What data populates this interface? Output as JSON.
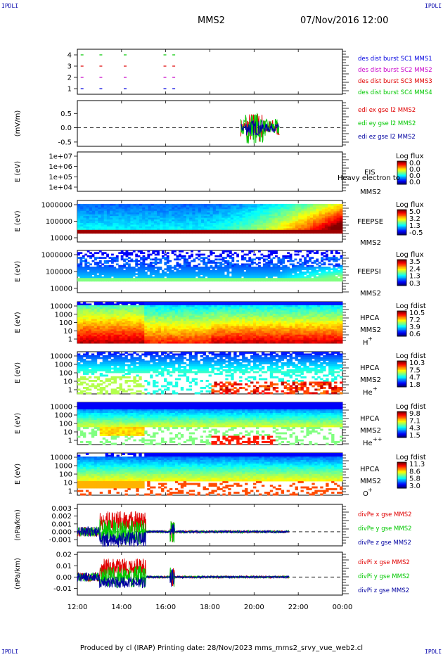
{
  "header": {
    "spacecraft": "MMS2",
    "datetime": "07/Nov/2016 12:00",
    "corner_tl": "IPDLI",
    "corner_tr": "IPDLI",
    "corner_bl": "IPDLI",
    "corner_br": "IPDLI"
  },
  "footer": {
    "text": "Produced by cl (IRAP)   Printing date: 28/Nov/2023   mms_mms2_srvy_vue_web2.cl"
  },
  "colors": {
    "red": "#e00000",
    "green": "#00c800",
    "blue": "#0000e0",
    "magenta": "#c800c8",
    "navy": "#0000a0"
  },
  "chart_data": [
    {
      "type": "scatter",
      "panel": "burst",
      "yticks": [
        "1",
        "2",
        "3",
        "4"
      ],
      "ylim": [
        0.5,
        4.5
      ],
      "legend": [
        {
          "label": "des dist burst SC1 MMS1",
          "color": "#0000e0"
        },
        {
          "label": "des dist burst SC2 MMS2",
          "color": "#c800c8"
        },
        {
          "label": "des dist burst SC3 MMS3",
          "color": "#e00000"
        },
        {
          "label": "des dist burst SC4 MMS4",
          "color": "#00c800"
        }
      ],
      "series": [
        {
          "name": "des dist burst SC1 MMS1",
          "y": 1,
          "x": [
            12.15,
            13.0,
            14.1,
            15.9,
            16.3
          ]
        },
        {
          "name": "des dist burst SC2 MMS2",
          "y": 2,
          "x": [
            12.15,
            13.0,
            14.1,
            15.9,
            16.3
          ]
        },
        {
          "name": "des dist burst SC3 MMS3",
          "y": 3,
          "x": [
            12.15,
            13.0,
            14.1,
            15.9,
            16.3
          ]
        },
        {
          "name": "des dist burst SC4 MMS4",
          "y": 4,
          "x": [
            12.15,
            13.0,
            14.1,
            15.9,
            16.3
          ]
        }
      ]
    },
    {
      "type": "line",
      "panel": "edi",
      "ylabel": "(mV/m)",
      "yticks": [
        "-0.5",
        "0.0",
        "0.5"
      ],
      "ylim": [
        -0.65,
        0.95
      ],
      "legend": [
        {
          "label": "edi ex gse l2 MMS2",
          "color": "#e00000"
        },
        {
          "label": "edi ey gse l2 MMS2",
          "color": "#00c800"
        },
        {
          "label": "edi ez gse l2 MMS2",
          "color": "#0000a0"
        }
      ],
      "x_range": [
        19.4,
        21.15
      ]
    },
    {
      "type": "heatmap",
      "panel": "eis",
      "ylabel": "E (eV)",
      "yticks": [
        "1e+04",
        "1e+05",
        "1e+06",
        "1e+07"
      ],
      "labels": [
        "EIS",
        "MMS2"
      ],
      "overlay": "Heavy electron to",
      "colorbar_title": "Log flux",
      "colorbar_ticks": [
        "0.0",
        "0.0",
        "0.0",
        "0.0"
      ]
    },
    {
      "type": "heatmap",
      "panel": "feepse",
      "ylabel": "E (eV)",
      "yticks": [
        "10000",
        "100000",
        "1000000"
      ],
      "labels": [
        "FEEPSE",
        "MMS2"
      ],
      "colorbar_title": "Log flux",
      "colorbar_ticks": [
        "5.0",
        "3.2",
        "1.3",
        "-0.5"
      ]
    },
    {
      "type": "heatmap",
      "panel": "feepsi",
      "ylabel": "E (eV)",
      "yticks": [
        "10000",
        "100000",
        "1000000"
      ],
      "labels": [
        "FEEPSI",
        "MMS2"
      ],
      "colorbar_title": "Log flux",
      "colorbar_ticks": [
        "3.5",
        "2.4",
        "1.3",
        "0.3"
      ]
    },
    {
      "type": "heatmap",
      "panel": "hpca-h",
      "ylabel": "E (eV)",
      "yticks": [
        "1",
        "10",
        "100",
        "1000",
        "10000"
      ],
      "labels": [
        "HPCA",
        "MMS2"
      ],
      "species": "H",
      "species_sup": "+",
      "colorbar_title": "Log fdist",
      "colorbar_ticks": [
        "10.5",
        "7.2",
        "3.9",
        "0.6"
      ]
    },
    {
      "type": "heatmap",
      "panel": "hpca-he",
      "ylabel": "E (eV)",
      "yticks": [
        "1",
        "10",
        "100",
        "1000",
        "10000"
      ],
      "labels": [
        "HPCA",
        "MMS2"
      ],
      "species": "He",
      "species_sup": "+",
      "colorbar_title": "Log fdist",
      "colorbar_ticks": [
        "10.3",
        "7.5",
        "4.7",
        "1.8"
      ]
    },
    {
      "type": "heatmap",
      "panel": "hpca-hepp",
      "ylabel": "E (eV)",
      "yticks": [
        "1",
        "10",
        "100",
        "1000",
        "10000"
      ],
      "labels": [
        "HPCA",
        "MMS2"
      ],
      "species": "He",
      "species_sup": "++",
      "colorbar_title": "Log fdist",
      "colorbar_ticks": [
        "9.8",
        "7.1",
        "4.3",
        "1.5"
      ]
    },
    {
      "type": "heatmap",
      "panel": "hpca-o",
      "ylabel": "E (eV)",
      "yticks": [
        "1",
        "10",
        "100",
        "1000",
        "10000"
      ],
      "labels": [
        "HPCA",
        "MMS2"
      ],
      "species": "O",
      "species_sup": "+",
      "colorbar_title": "Log fdist",
      "colorbar_ticks": [
        "11.3",
        "8.6",
        "5.8",
        "3.0"
      ]
    },
    {
      "type": "line",
      "panel": "divpe",
      "ylabel": "(nPa/km)",
      "yticks": [
        "-0.001",
        "0.000",
        "0.001",
        "0.002",
        "0.003"
      ],
      "ylim": [
        -0.0018,
        0.0035
      ],
      "legend": [
        {
          "label": "divPe x gse MMS2",
          "color": "#e00000"
        },
        {
          "label": "divPe y gse MMS2",
          "color": "#00c800"
        },
        {
          "label": "divPe z gse MMS2",
          "color": "#0000a0"
        }
      ],
      "x_range": [
        12.0,
        21.6
      ]
    },
    {
      "type": "line",
      "panel": "divpi",
      "ylabel": "(nPa/km)",
      "yticks": [
        "-0.01",
        "0.00",
        "0.01",
        "0.02"
      ],
      "ylim": [
        -0.016,
        0.022
      ],
      "legend": [
        {
          "label": "divPi x gse MMS2",
          "color": "#e00000"
        },
        {
          "label": "divPi y gse MMS2",
          "color": "#00c800"
        },
        {
          "label": "divPi z gse MMS2",
          "color": "#0000a0"
        }
      ],
      "x_range": [
        12.0,
        21.6
      ]
    }
  ],
  "x_axis": {
    "xlim": [
      12,
      24
    ],
    "tick_labels": [
      "12:00",
      "14:00",
      "16:00",
      "18:00",
      "20:00",
      "22:00",
      "00:00"
    ]
  }
}
